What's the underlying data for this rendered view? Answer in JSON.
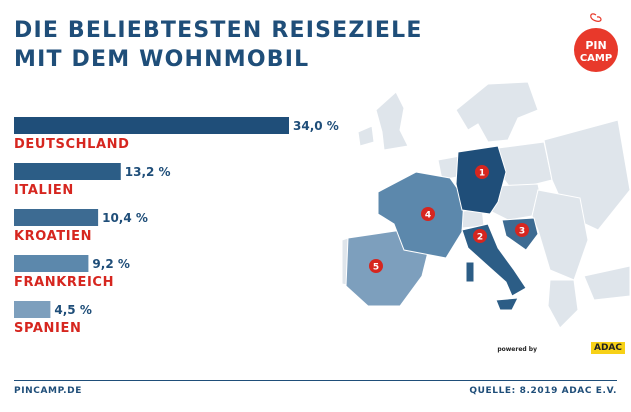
{
  "header": {
    "title_line1": "DIE BELIEBTESTEN REISEZIELE",
    "title_line2": "MIT DEM WOHNMOBIL"
  },
  "logo": {
    "line1": "PIN",
    "line2": "CAMP",
    "color": "#e8392b"
  },
  "colors": {
    "title": "#1f4e79",
    "labels": "#d6261f",
    "value_text": "#1f4e79",
    "marker": "#d6261f"
  },
  "chart_data": {
    "type": "bar",
    "orientation": "horizontal",
    "categories": [
      "DEUTSCHLAND",
      "ITALIEN",
      "KROATIEN",
      "FRANKREICH",
      "SPANIEN"
    ],
    "values": [
      34.0,
      13.2,
      10.4,
      9.2,
      4.5
    ],
    "value_labels": [
      "34,0 %",
      "13,2 %",
      "10,4 %",
      "9,2 %",
      "4,5 %"
    ],
    "unit": "%",
    "bar_colors": [
      "#1f4e79",
      "#2c5d86",
      "#3d6b92",
      "#5c88ac",
      "#7d9fbd"
    ],
    "xlim": [
      0,
      34.0
    ],
    "grid": false,
    "legend": "none"
  },
  "map": {
    "markers": [
      {
        "rank": "1",
        "country": "DEUTSCHLAND"
      },
      {
        "rank": "2",
        "country": "ITALIEN"
      },
      {
        "rank": "3",
        "country": "KROATIEN"
      },
      {
        "rank": "4",
        "country": "FRANKREICH"
      },
      {
        "rank": "5",
        "country": "SPANIEN"
      }
    ],
    "highlight_colors": {
      "DEUTSCHLAND": "#1f4e79",
      "ITALIEN": "#2c5d86",
      "KROATIEN": "#3d6b92",
      "FRANKREICH": "#5c88ac",
      "SPANIEN": "#7d9fbd"
    },
    "base_color": "#dfe5eb"
  },
  "badge": {
    "powered_by": "powered by",
    "brand": "ADAC"
  },
  "footer": {
    "left": "PINCAMP.DE",
    "right": "QUELLE: 8.2019 ADAC E.V."
  }
}
